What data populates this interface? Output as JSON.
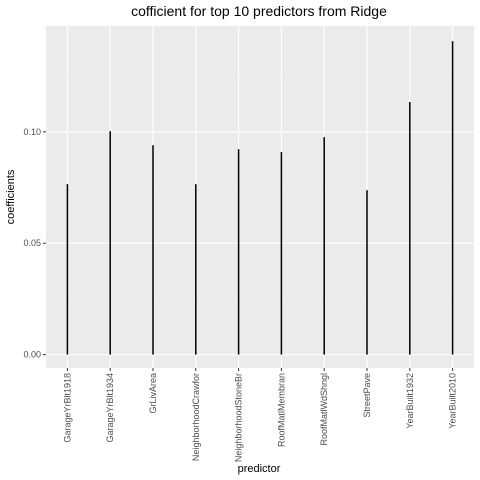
{
  "chart_data": {
    "type": "bar",
    "title": "cofficient for top 10 predictors from Ridge",
    "xlabel": "predictor",
    "ylabel": "coefficients",
    "categories": [
      "GarageYrBlt1918",
      "GarageYrBlt1934",
      "GrLivArea",
      "NeighborhoodCrawfor",
      "NeighborhoodStoneBr",
      "RoofMatlMembran",
      "RoofMatlWdShngl",
      "StreetPave",
      "YearBuilt1932",
      "YearBuilt2010"
    ],
    "values": [
      0.0765,
      0.1003,
      0.094,
      0.0765,
      0.0922,
      0.0909,
      0.0976,
      0.0738,
      0.1134,
      0.1407
    ],
    "ylim": [
      -0.006,
      0.1475
    ],
    "yticks": [
      0.0,
      0.05,
      0.1
    ],
    "ytick_labels": [
      "0.00",
      "0.05",
      "0.10"
    ],
    "grid": true,
    "legend": "none",
    "colors": {
      "panel_background": "#ebebeb",
      "major_grid": "#ffffff",
      "minor_grid": "#f5f5f5",
      "bar": "#000000",
      "tick_text": "#4d4d4d",
      "tick_mark": "#333333"
    }
  }
}
